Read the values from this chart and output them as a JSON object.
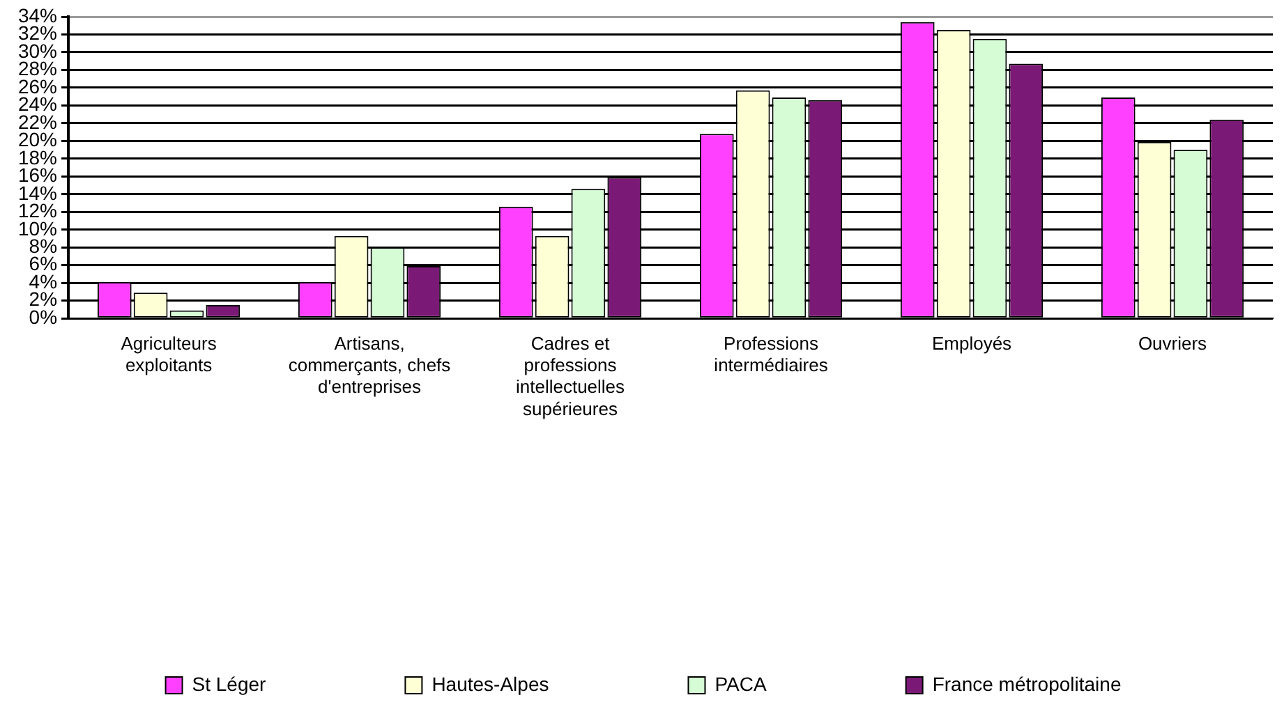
{
  "chart_data": {
    "type": "bar",
    "categories": [
      "Agriculteurs exploitants",
      "Artisans, commerçants, chefs d'entreprises",
      "Cadres et professions intellectuelles supérieures",
      "Professions intermédiaires",
      "Employés",
      "Ouvriers"
    ],
    "series": [
      {
        "name": "St Léger",
        "color": "#ff40ff",
        "values": [
          4.1,
          4.1,
          12.6,
          20.8,
          33.4,
          24.9
        ]
      },
      {
        "name": "Hautes-Alpes",
        "color": "#ffffd6",
        "values": [
          2.9,
          9.3,
          9.3,
          25.7,
          32.5,
          19.9
        ]
      },
      {
        "name": "PACA",
        "color": "#d6fcd6",
        "values": [
          0.9,
          8.0,
          14.6,
          24.9,
          31.5,
          19.0
        ]
      },
      {
        "name": "France métropolitaine",
        "color": "#7b1a76",
        "values": [
          1.5,
          5.9,
          15.9,
          24.6,
          28.7,
          22.4
        ]
      }
    ],
    "ylim": [
      0,
      34
    ],
    "yticks": [
      {
        "value": 0,
        "label": "0%"
      },
      {
        "value": 2,
        "label": "2%"
      },
      {
        "value": 4,
        "label": "4%"
      },
      {
        "value": 6,
        "label": "6%"
      },
      {
        "value": 8,
        "label": "8%"
      },
      {
        "value": 10,
        "label": "10%"
      },
      {
        "value": 12,
        "label": "12%"
      },
      {
        "value": 14,
        "label": "14%"
      },
      {
        "value": 16,
        "label": "16%"
      },
      {
        "value": 18,
        "label": "18%"
      },
      {
        "value": 20,
        "label": "20%"
      },
      {
        "value": 22,
        "label": "22%"
      },
      {
        "value": 24,
        "label": "24%"
      },
      {
        "value": 26,
        "label": "26%"
      },
      {
        "value": 28,
        "label": "28%"
      },
      {
        "value": 30,
        "label": "30%"
      },
      {
        "value": 32,
        "label": "32%"
      },
      {
        "value": 34,
        "label": "34%"
      }
    ],
    "grid": "y",
    "legend": "bottom"
  }
}
